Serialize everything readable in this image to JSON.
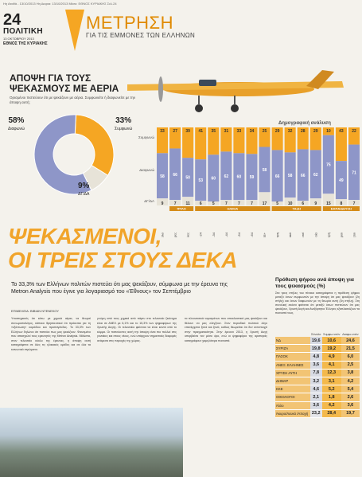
{
  "header": {
    "topbar": "Ηη Αταθά - 13/10/2013 Ηη Διαρια: 13/10/2013 Μέσο: ΕΘΝΟΣ ΚΥΡΙΑΚΗΣ Σελ.24",
    "page_number": "24",
    "section": "ΠΟΛΙΤΙΚΗ",
    "date": "13 ΟΚΤΩΒΡΙΟΥ 2013",
    "paper": "ΕΘΝΟΣ ΤΗΣ ΚΥΡΙΑΚΗΣ",
    "brand_title": "ΜΕΤΡΗΣΗ",
    "brand_subtitle": "ΓΙΑ ΤΙΣ ΕΜΜΟΝΕΣ ΤΩΝ ΕΛΛΗΝΩΝ",
    "accent": "#f5a623"
  },
  "pie": {
    "title": "ΑΠΟΨΗ ΓΙΑ ΤΟΥΣ ΨΕΚΑΣΜΟΥΣ ΜΕ ΑΕΡΙΑ",
    "description": "Ορισμένοι πιστεύουν ότι με ψεκάζουν με αέρια. Συμφωνείτε ή διαφωνείτε με την άποψη αυτή;",
    "slices": [
      {
        "label": "Διαφωνώ",
        "value": 58,
        "display": "58%",
        "color": "#8e96c8"
      },
      {
        "label": "Συμφωνώ",
        "value": 33,
        "display": "33%",
        "color": "#f5a623"
      },
      {
        "label": "ΔΓ/ΔΑ",
        "value": 9,
        "display": "9%",
        "color": "#e7e3d8"
      }
    ]
  },
  "chart_data": {
    "type": "bar",
    "title": "Δημογραφική ανάλυση",
    "row_labels": [
      "Συμφωνώ",
      "Διαφωνώ",
      "ΔΓ/ΔΑ"
    ],
    "categories": [
      "Σύνολο",
      "Άνδρες",
      "Γυναίκες",
      "18-24",
      "25-34",
      "35-44",
      "45-54",
      "55-64",
      "65+",
      "Ανώτερη",
      "Αγροτικό",
      "Μισθωτοί",
      "Μεσαία",
      "Κατώτερη",
      "Μέτριοι",
      "Ανεξάρτητοι"
    ],
    "groups": [
      "ΦΥΛΟ",
      "ΗΛΙΚΙΑ",
      "ΤΑΞΗ",
      "ΕΚΠΑΙΔΕΥΣΗ"
    ],
    "series": [
      {
        "name": "Συμφωνώ",
        "values": [
          33,
          27,
          39,
          41,
          35,
          31,
          33,
          34,
          25,
          29,
          32,
          28,
          29,
          10,
          43,
          22
        ]
      },
      {
        "name": "Διαφωνώ",
        "values": [
          58,
          66,
          50,
          53,
          60,
          62,
          60,
          59,
          58,
          66,
          58,
          66,
          62,
          75,
          49,
          71
        ]
      },
      {
        "name": "ΔΓ/ΔΑ",
        "values": [
          9,
          7,
          11,
          6,
          5,
          7,
          7,
          7,
          17,
          5,
          10,
          6,
          9,
          15,
          8,
          7
        ]
      }
    ],
    "colors": {
      "agree": "#f5a623",
      "disagree": "#8e96c8",
      "dk": "#e7e3d8"
    },
    "ylim": [
      0,
      100
    ]
  },
  "article": {
    "headline_line1": "ΨΕΚΑΣΜΕΝΟΙ,",
    "headline_line2": "ΟΙ ΤΡΕΙΣ ΣΤΟΥΣ ΔΕΚΑ",
    "lede": "Το 33,3% των Ελλήνων πολιτών πιστεύει ότι μας ψεκάζουν, σύμφωνα με την έρευνα της Metron Analysis που έγινε για λογαριασμό του «Έθνους» τον Σεπτέμβριο",
    "byline": "ΕΠΙΜΕΛΕΙΑ: ΒΙΒΙΑΝ ΝΤΕΝΕΚΟΥ",
    "col1": "Υποστηρικτές ότι κάτω με χημικά αέρια, να θεωρεί συνωμοσιολόγος, κάποιοι θρησκευτικοί ότι πρόκειται για τη «εξόντωση» κορόιδου και προπαγάνδας. Το 33,3% των Ελλήνων δηλώνει ότι πιστεύει πως μας ψεκάζουν. Φαινομένο που απασχολεί τους ερευνητές της Metron Analysis. Μάλιστα, στον τελευταίο κύκλο της έρευνας, η άποψη αυτή καταγράφεται σε όλες τις ηλικιακές ομάδες και σε όλα τα κοινωνικά στρώματα.",
    "col2": "γνώμη από τους χημικά από πάρτυ στο τελευταίο ξεκίνημα είναι σε ΑΝΕΛ με 6,1% και το 15,3% των ψηφοφόρων της Χρυσής Αυγής. Οι τελευταίοι φαίνεται να είναι κοντά από το κόμμα. Οι πιστεύοντες αυτή την άποψη είναι πιο πολλοί στις γυναίκες και στους νέους, ενώ υπάρχουν σημαντικές διαφορές ανάμεσα στις περιοχές της χώρας.",
    "col3": "τα πλεονεκτικά νομισμάτων που αποκλειστικά μας ψεκάζουν και θέλουν να μας ελέγξουν. Στον περιοδικό πολιτικό λόγο επανέρχεται ξανά και ξανά, καθώς θεωρείται ότι δεν αντιστοιχεί στην πραγματικότητα. Στην έρευνα 2013, η Χρυσή Αυγή υπερβαίνει τον μέσο όρο, ενώ οι ψηφοφόροι της αριστεράς καταγράφουν χαμηλότερα ποσοστά."
  },
  "table": {
    "title": "Πρόθεση ψήφου ανά άποψη για τους ψεκασμούς (%)",
    "description": "Στα τρεις στήλες του πίνακα καταγράφεται η πρόθεση ψήφου μεταξύ όσων συμφωνούν με την άποψη ότι μας ψεκάζουν (2η στήλη) και όσων διαφωνούν με τη θεωρία αυτή (3η στήλη). Στη συνολική εικόνα φαίνεται ότι μεταξύ όσων πιστεύουν ότι μας ψεκάζουν, Χρυσή Αυγή και Ανεξάρτητοι Έλληνες εξαπλασιάζουν τα ποσοστά τους.",
    "headers": [
      "",
      "Σύνολο",
      "Συμφω-νούν",
      "Διαφω-νούν"
    ],
    "rows": [
      [
        "ΝΔ",
        "19,6",
        "10,6",
        "24,6"
      ],
      [
        "ΣΥΡΙΖΑ",
        "19,8",
        "19,2",
        "21,5"
      ],
      [
        "ΠΑΣΟΚ",
        "4,8",
        "4,9",
        "6,0"
      ],
      [
        "ΑΝΕΞ. ΕΛΛΗΝΕΣ",
        "3,6",
        "4,1",
        "2,5"
      ],
      [
        "ΧΡΥΣΗ ΑΥΓΗ",
        "7,8",
        "12,3",
        "3,8"
      ],
      [
        "ΔΗΜΑΡ",
        "3,2",
        "3,1",
        "4,2"
      ],
      [
        "ΚΚΕ",
        "4,6",
        "5,2",
        "5,4"
      ],
      [
        "ΟΙΚΟΛΟΓΟΙ",
        "2,1",
        "1,8",
        "2,6"
      ],
      [
        "Άλλο",
        "3,6",
        "4,2",
        "3,6"
      ],
      [
        "Άκυρο/Λευκό /Αποχή",
        "23,2",
        "28,4",
        "19,7"
      ]
    ]
  }
}
